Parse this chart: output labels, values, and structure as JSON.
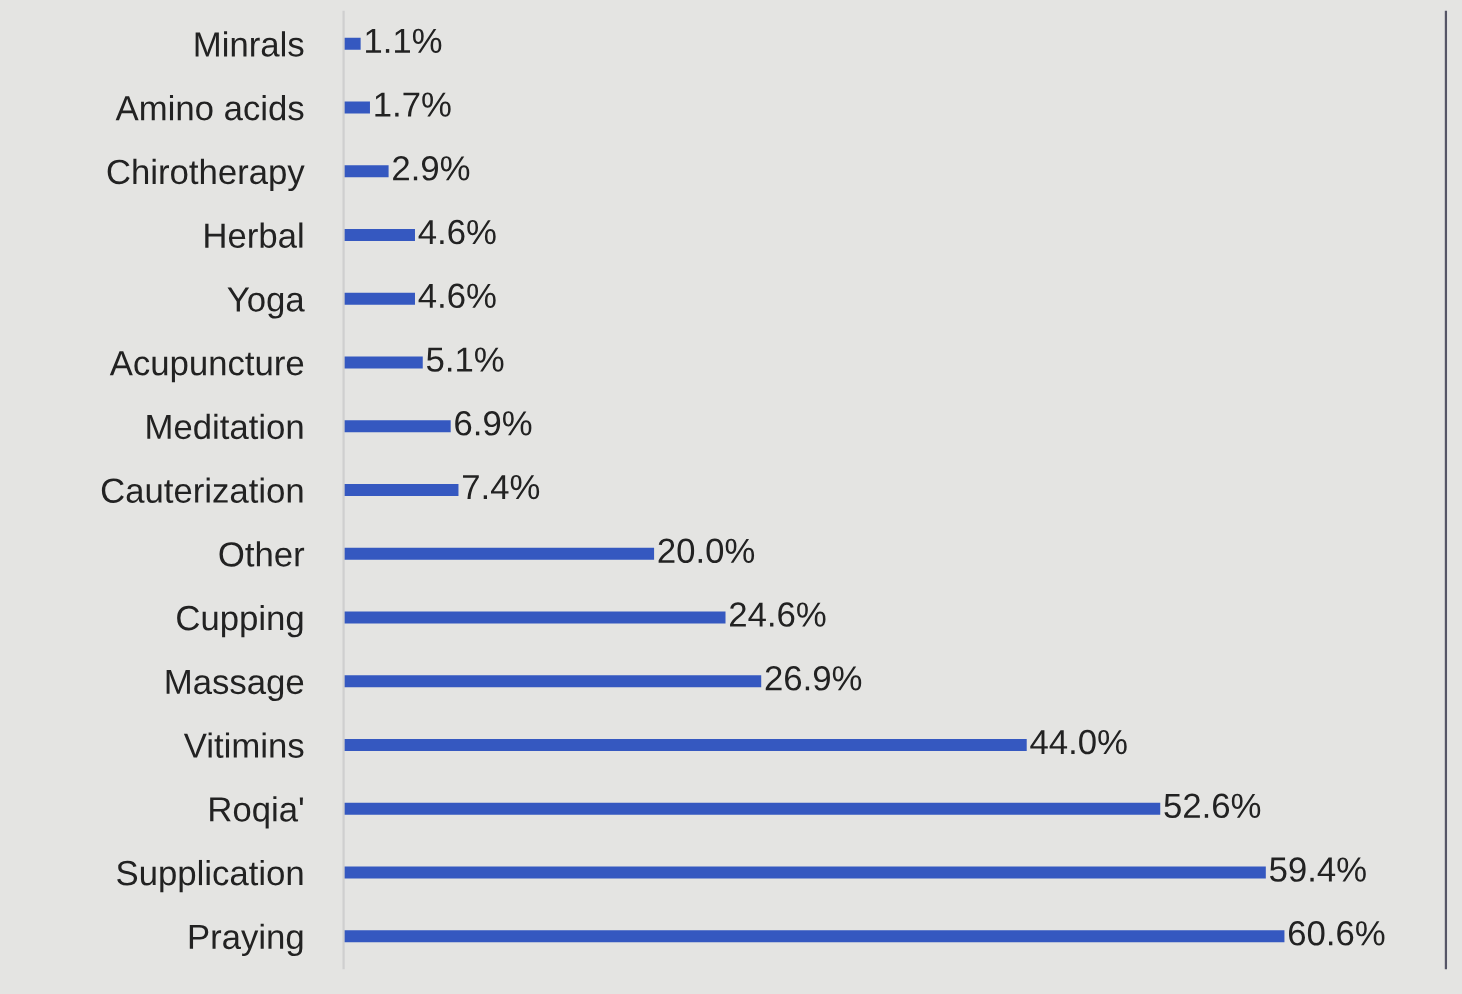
{
  "chart_data": {
    "type": "bar",
    "orientation": "horizontal",
    "categories": [
      "Minrals",
      "Amino acids",
      "Chirotherapy",
      "Herbal",
      "Yoga",
      "Acupuncture",
      "Meditation",
      "Cauterization",
      "Other",
      "Cupping",
      "Massage",
      "Vitimins",
      "Roqia'",
      "Supplication",
      "Praying"
    ],
    "values": [
      1.1,
      1.7,
      2.9,
      4.6,
      4.6,
      5.1,
      6.9,
      7.4,
      20.0,
      24.6,
      26.9,
      44.0,
      52.6,
      59.4,
      60.6
    ],
    "value_labels": [
      "1.1%",
      "1.7%",
      "2.9%",
      "4.6%",
      "4.6%",
      "5.1%",
      "6.9%",
      "7.4%",
      "20.0%",
      "24.6%",
      "26.9%",
      "44.0%",
      "52.6%",
      "59.4%",
      "60.6%"
    ],
    "color": "#3558c0",
    "xlim": [
      0,
      71
    ],
    "tick_labels": "y"
  }
}
